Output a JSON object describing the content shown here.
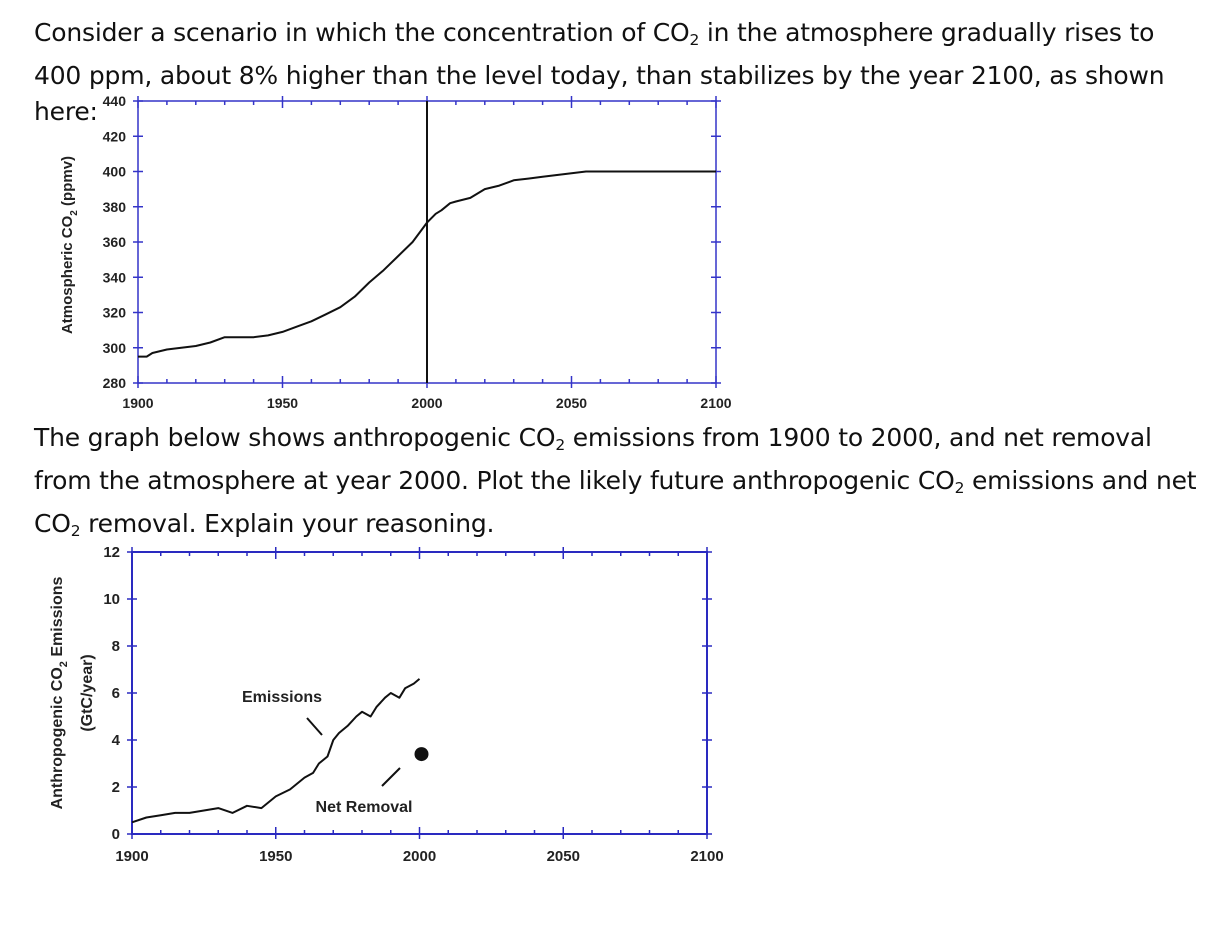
{
  "text": {
    "paragraph1": {
      "before": "Consider a scenario in which the concentration of CO",
      "sub": "2",
      "after": " in the atmosphere gradually rises to 400 ppm, about 8% higher than the level today, than stabilizes by the year 2100, as shown here:"
    },
    "paragraph2": {
      "part1": "The graph below shows anthropogenic CO",
      "sub1": "2",
      "part2": " emissions from 1900 to 2000, and net removal from the atmosphere at year 2000. Plot the likely future anthropogenic CO",
      "sub2": "2",
      "part3": " emissions and net CO",
      "sub3": "2",
      "part4": " removal. Explain your reasoning."
    }
  },
  "chart_data": [
    {
      "type": "line",
      "title": "",
      "xlabel": "",
      "ylabel": {
        "main": "Atmospheric CO",
        "sub": "2",
        "unit": " (ppmv)"
      },
      "xlim": [
        1900,
        2100
      ],
      "ylim": [
        280,
        440
      ],
      "x_ticks": [
        1900,
        1950,
        2000,
        2050,
        2100
      ],
      "y_ticks": [
        280,
        300,
        320,
        340,
        360,
        380,
        400,
        420,
        440
      ],
      "grid": false,
      "vertical_marker_x": 2000,
      "series": [
        {
          "x": [
            1900,
            1903,
            1905,
            1910,
            1915,
            1920,
            1925,
            1930,
            1935,
            1940,
            1945,
            1950,
            1955,
            1960,
            1965,
            1970,
            1975,
            1980,
            1985,
            1990,
            1995,
            2000,
            2003,
            2005,
            2008,
            2010,
            2015,
            2020,
            2025,
            2030,
            2035,
            2040,
            2045,
            2050,
            2055,
            2060,
            2070,
            2080,
            2090,
            2100
          ],
          "y": [
            295,
            295,
            297,
            299,
            300,
            301,
            303,
            306,
            306,
            306,
            307,
            309,
            312,
            315,
            319,
            323,
            329,
            337,
            344,
            352,
            360,
            371,
            376,
            378,
            382,
            383,
            385,
            390,
            392,
            395,
            396,
            397,
            398,
            399,
            400,
            400,
            400,
            400,
            400,
            400
          ],
          "color": "#111111"
        }
      ]
    },
    {
      "type": "line",
      "title": "",
      "xlabel": "",
      "ylabel": {
        "main": "Anthropogenic CO",
        "sub": "2",
        "unit": " Emissions",
        "line2": "(GtC/year)"
      },
      "xlim": [
        1900,
        2100
      ],
      "ylim": [
        0,
        12
      ],
      "x_ticks": [
        1900,
        1950,
        2000,
        2050,
        2100
      ],
      "y_ticks": [
        0,
        2,
        4,
        6,
        8,
        10,
        12
      ],
      "grid": false,
      "series": [
        {
          "name": "Emissions",
          "x": [
            1900,
            1905,
            1910,
            1915,
            1920,
            1925,
            1930,
            1935,
            1940,
            1945,
            1950,
            1955,
            1960,
            1963,
            1965,
            1968,
            1970,
            1972,
            1975,
            1978,
            1980,
            1983,
            1985,
            1988,
            1990,
            1993,
            1995,
            1998,
            2000
          ],
          "y": [
            0.5,
            0.7,
            0.8,
            0.9,
            0.9,
            1.0,
            1.1,
            0.9,
            1.2,
            1.1,
            1.6,
            1.9,
            2.4,
            2.6,
            3.0,
            3.3,
            4.0,
            4.3,
            4.6,
            5.0,
            5.2,
            5.0,
            5.4,
            5.8,
            6.0,
            5.8,
            6.2,
            6.4,
            6.6
          ],
          "color": "#111111"
        }
      ],
      "points": [
        {
          "name": "Net Removal",
          "x": 2000,
          "y": 3.4,
          "color": "#111111"
        }
      ],
      "annotations": [
        {
          "text": "Emissions",
          "target_series": "Emissions"
        },
        {
          "text": "Net Removal",
          "target_point": "Net Removal"
        }
      ]
    }
  ],
  "colors": {
    "axis_frame": "#2a2ac0",
    "chart1_frame": "#3434c8",
    "text": "#111111",
    "line": "#111111"
  }
}
